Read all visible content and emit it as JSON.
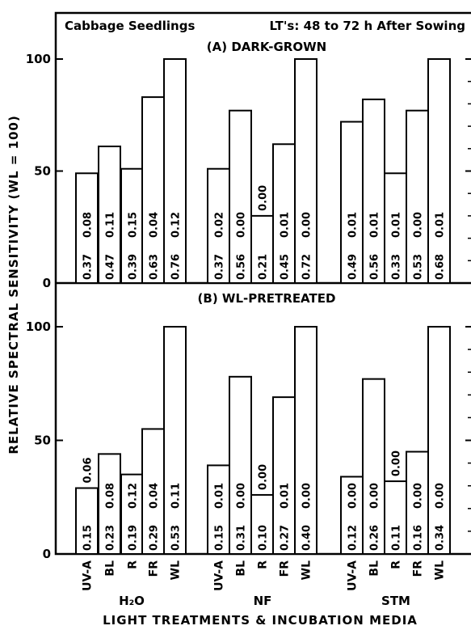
{
  "figure": {
    "header_left": "Cabbage Seedlings",
    "header_right": "LT's: 48 to 72 h  After Sowing",
    "ylabel": "RELATIVE  SPECTRAL  SENSITIVITY   (WL = 100)",
    "xlabel": "LIGHT TREATMENTS & INCUBATION MEDIA"
  },
  "chart_data": [
    {
      "type": "bar",
      "title": "(A) DARK-GROWN",
      "ylim": [
        0,
        100
      ],
      "yticks": [
        "0",
        "50",
        "100"
      ],
      "groups": [
        {
          "name": "H2O",
          "bars": [
            {
              "category": "UV-A",
              "value": 49,
              "lower_label": "0.37",
              "upper_label": "0.08"
            },
            {
              "category": "BL",
              "value": 61,
              "lower_label": "0.47",
              "upper_label": "0.11"
            },
            {
              "category": "R",
              "value": 51,
              "lower_label": "0.39",
              "upper_label": "0.15"
            },
            {
              "category": "FR",
              "value": 83,
              "lower_label": "0.63",
              "upper_label": "0.04"
            },
            {
              "category": "WL",
              "value": 100,
              "lower_label": "0.76",
              "upper_label": "0.12"
            }
          ]
        },
        {
          "name": "NF",
          "bars": [
            {
              "category": "UV-A",
              "value": 51,
              "lower_label": "0.37",
              "upper_label": "0.02"
            },
            {
              "category": "BL",
              "value": 77,
              "lower_label": "0.56",
              "upper_label": "0.00"
            },
            {
              "category": "R",
              "value": 30,
              "lower_label": "0.21",
              "upper_label": "0.00"
            },
            {
              "category": "FR",
              "value": 62,
              "lower_label": "0.45",
              "upper_label": "0.01"
            },
            {
              "category": "WL",
              "value": 100,
              "lower_label": "0.72",
              "upper_label": "0.00"
            }
          ]
        },
        {
          "name": "STM",
          "bars": [
            {
              "category": "UV-A",
              "value": 72,
              "lower_label": "0.49",
              "upper_label": "0.01"
            },
            {
              "category": "BL",
              "value": 82,
              "lower_label": "0.56",
              "upper_label": "0.01"
            },
            {
              "category": "R",
              "value": 49,
              "lower_label": "0.33",
              "upper_label": "0.01"
            },
            {
              "category": "FR",
              "value": 77,
              "lower_label": "0.53",
              "upper_label": "0.00"
            },
            {
              "category": "WL",
              "value": 100,
              "lower_label": "0.68",
              "upper_label": "0.01"
            }
          ]
        }
      ]
    },
    {
      "type": "bar",
      "title": "(B) WL-PRETREATED",
      "ylim": [
        0,
        100
      ],
      "yticks": [
        "0",
        "50",
        "100"
      ],
      "groups": [
        {
          "name": "H2O",
          "bars": [
            {
              "category": "UV-A",
              "value": 29,
              "lower_label": "0.15",
              "upper_label": "0.06"
            },
            {
              "category": "BL",
              "value": 44,
              "lower_label": "0.23",
              "upper_label": "0.08"
            },
            {
              "category": "R",
              "value": 35,
              "lower_label": "0.19",
              "upper_label": "0.12"
            },
            {
              "category": "FR",
              "value": 55,
              "lower_label": "0.29",
              "upper_label": "0.04"
            },
            {
              "category": "WL",
              "value": 100,
              "lower_label": "0.53",
              "upper_label": "0.11"
            }
          ]
        },
        {
          "name": "NF",
          "bars": [
            {
              "category": "UV-A",
              "value": 39,
              "lower_label": "0.15",
              "upper_label": "0.01"
            },
            {
              "category": "BL",
              "value": 78,
              "lower_label": "0.31",
              "upper_label": "0.00"
            },
            {
              "category": "R",
              "value": 26,
              "lower_label": "0.10",
              "upper_label": "0.00"
            },
            {
              "category": "FR",
              "value": 69,
              "lower_label": "0.27",
              "upper_label": "0.01"
            },
            {
              "category": "WL",
              "value": 100,
              "lower_label": "0.40",
              "upper_label": "0.00"
            }
          ]
        },
        {
          "name": "STM",
          "bars": [
            {
              "category": "UV-A",
              "value": 34,
              "lower_label": "0.12",
              "upper_label": "0.00"
            },
            {
              "category": "BL",
              "value": 77,
              "lower_label": "0.26",
              "upper_label": "0.00"
            },
            {
              "category": "R",
              "value": 32,
              "lower_label": "0.11",
              "upper_label": "0.00"
            },
            {
              "category": "FR",
              "value": 45,
              "lower_label": "0.16",
              "upper_label": "0.00"
            },
            {
              "category": "WL",
              "value": 100,
              "lower_label": "0.34",
              "upper_label": "0.00"
            }
          ]
        }
      ]
    }
  ]
}
